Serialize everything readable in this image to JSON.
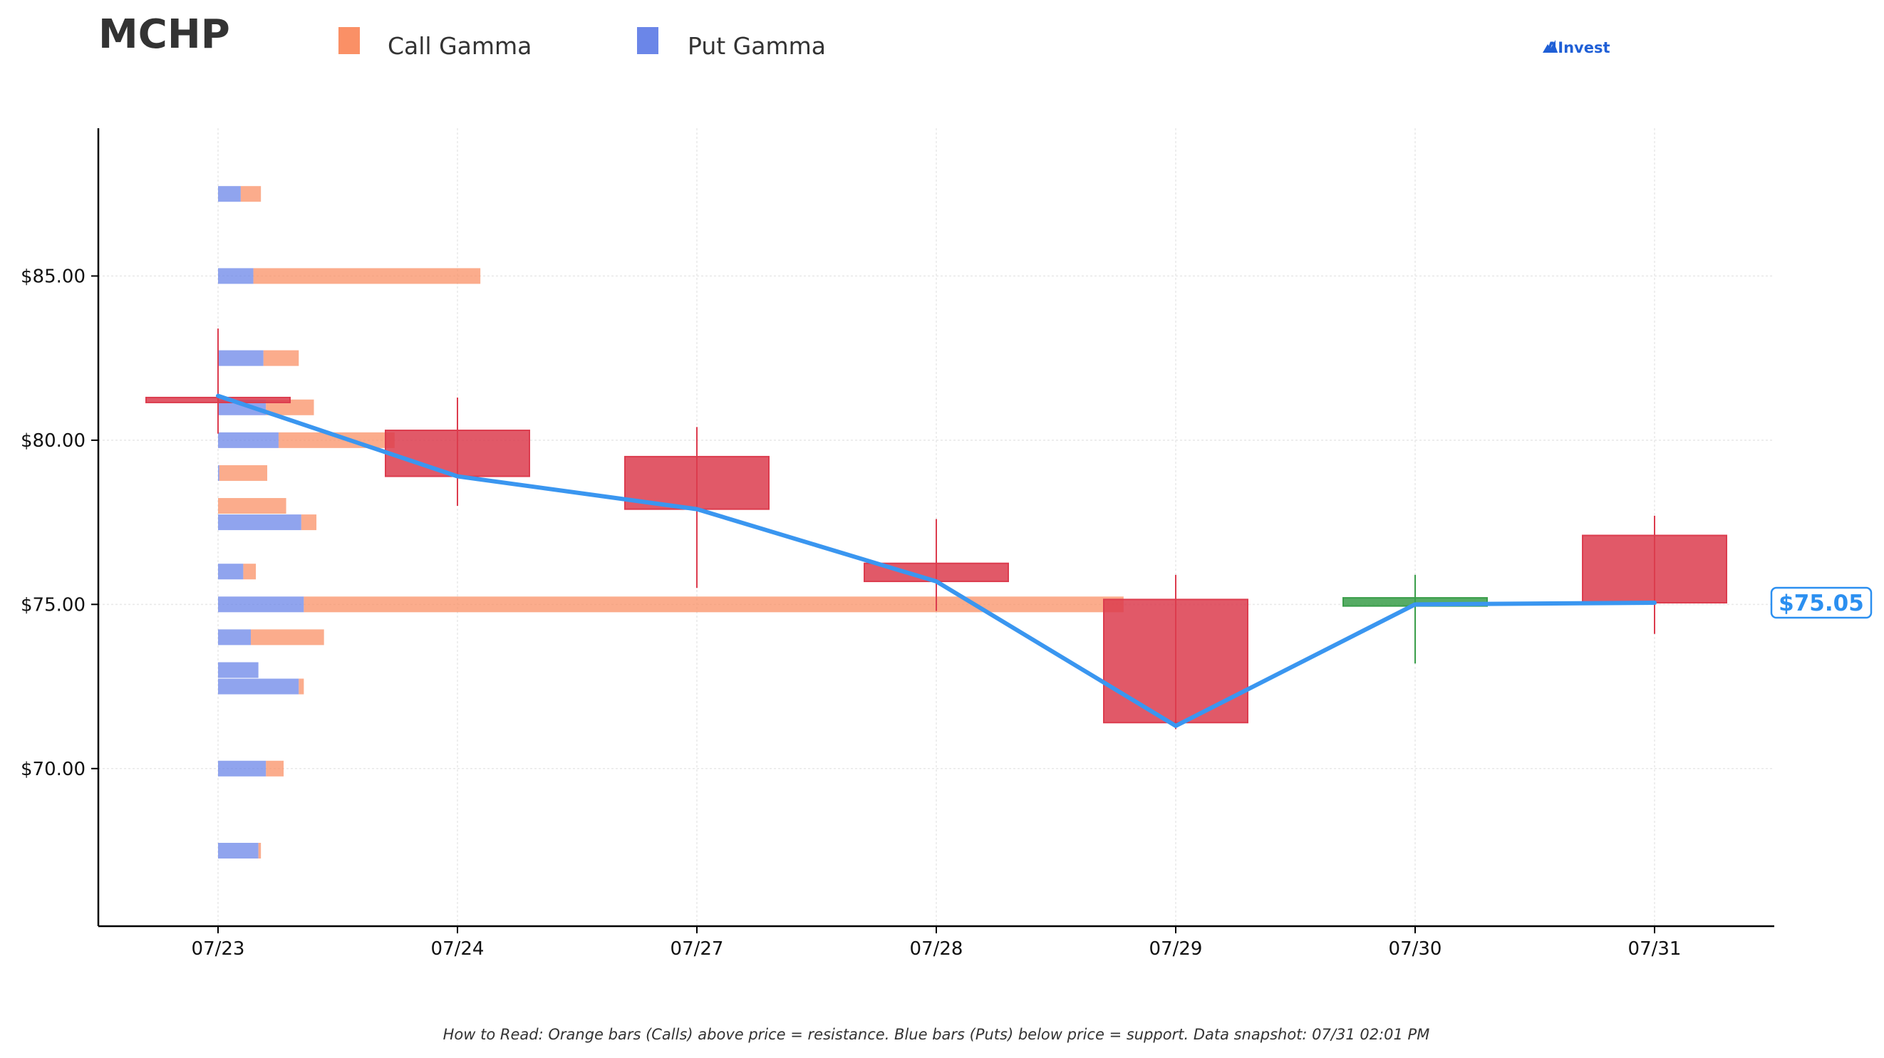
{
  "ticker": "MCHP",
  "legend": {
    "call_label": "Call Gamma",
    "put_label": "Put Gamma"
  },
  "brand": "AInvest",
  "footnote": "How to Read: Orange bars (Calls) above price = resistance. Blue bars (Puts) below price = support. Data snapshot: 07/31 02:01 PM",
  "current_price_label": "$75.05",
  "colors": {
    "call": "#fa9066",
    "put": "#6b86e8",
    "up": "#3a9e4a",
    "down": "#dc3c4e",
    "line": "#3a96f0",
    "axis": "#000000",
    "grid": "#e8e8e8",
    "price_box": "#2b8ff0"
  },
  "chart_data": {
    "type": "candlestick",
    "title": "MCHP",
    "categories": [
      "07/23",
      "07/24",
      "07/27",
      "07/28",
      "07/29",
      "07/30",
      "07/31"
    ],
    "ylim": [
      65.2,
      89.5
    ],
    "yticks": [
      70,
      75,
      80,
      85
    ],
    "ytick_labels": [
      "$70.00",
      "$75.00",
      "$80.00",
      "$85.00"
    ],
    "grid": true,
    "candles": [
      {
        "x": "07/23",
        "open": 81.3,
        "close": 81.2,
        "high": 83.4,
        "low": 80.2
      },
      {
        "x": "07/24",
        "open": 80.3,
        "close": 78.9,
        "high": 81.3,
        "low": 78.0
      },
      {
        "x": "07/27",
        "open": 79.5,
        "close": 77.9,
        "high": 80.4,
        "low": 75.5
      },
      {
        "x": "07/28",
        "open": 76.25,
        "close": 75.7,
        "high": 77.6,
        "low": 74.8
      },
      {
        "x": "07/29",
        "open": 75.15,
        "close": 71.4,
        "high": 75.9,
        "low": 71.2
      },
      {
        "x": "07/30",
        "open": 74.95,
        "close": 75.2,
        "high": 75.9,
        "low": 73.2
      },
      {
        "x": "07/31",
        "open": 77.1,
        "close": 75.05,
        "high": 77.7,
        "low": 74.1
      }
    ],
    "close_line": [
      81.35,
      78.9,
      77.9,
      75.7,
      71.3,
      75.0,
      75.05
    ],
    "gamma_bars": [
      {
        "strike": 87.5,
        "call": 0.08,
        "put": 0.09
      },
      {
        "strike": 85.0,
        "call": 0.9,
        "put": 0.14
      },
      {
        "strike": 82.5,
        "call": 0.14,
        "put": 0.18
      },
      {
        "strike": 81.0,
        "call": 0.19,
        "put": 0.19
      },
      {
        "strike": 80.0,
        "call": 0.46,
        "put": 0.24
      },
      {
        "strike": 79.0,
        "call": 0.19,
        "put": 0.005
      },
      {
        "strike": 78.0,
        "call": 0.27,
        "put": 0
      },
      {
        "strike": 77.5,
        "call": 0.06,
        "put": 0.33
      },
      {
        "strike": 76.0,
        "call": 0.05,
        "put": 0.1
      },
      {
        "strike": 75.0,
        "call": 3.25,
        "put": 0.34
      },
      {
        "strike": 74.0,
        "call": 0.29,
        "put": 0.13
      },
      {
        "strike": 73.0,
        "call": 0,
        "put": 0.16
      },
      {
        "strike": 72.5,
        "call": 0.02,
        "put": 0.32
      },
      {
        "strike": 70.0,
        "call": 0.07,
        "put": 0.19
      },
      {
        "strike": 67.5,
        "call": 0.01,
        "put": 0.16
      }
    ],
    "current_price": 75.05
  }
}
